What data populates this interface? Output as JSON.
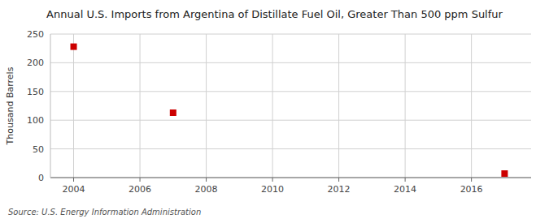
{
  "chart_data": {
    "type": "scatter",
    "title": "Annual U.S. Imports from Argentina of Distillate Fuel Oil, Greater Than 500 ppm Sulfur",
    "ylabel": "Thousand Barrels",
    "source": "Source: U.S. Energy Information Administration",
    "x": [
      2004,
      2007,
      2017
    ],
    "values": [
      228,
      113,
      7
    ],
    "color": "#cc0000",
    "marker": "square",
    "xlim": [
      2003.3,
      2017.8
    ],
    "ylim": [
      0,
      250
    ],
    "xticks": [
      2004,
      2006,
      2008,
      2010,
      2012,
      2014,
      2016
    ],
    "yticks": [
      0,
      50,
      100,
      150,
      200,
      250
    ],
    "grid": true
  }
}
